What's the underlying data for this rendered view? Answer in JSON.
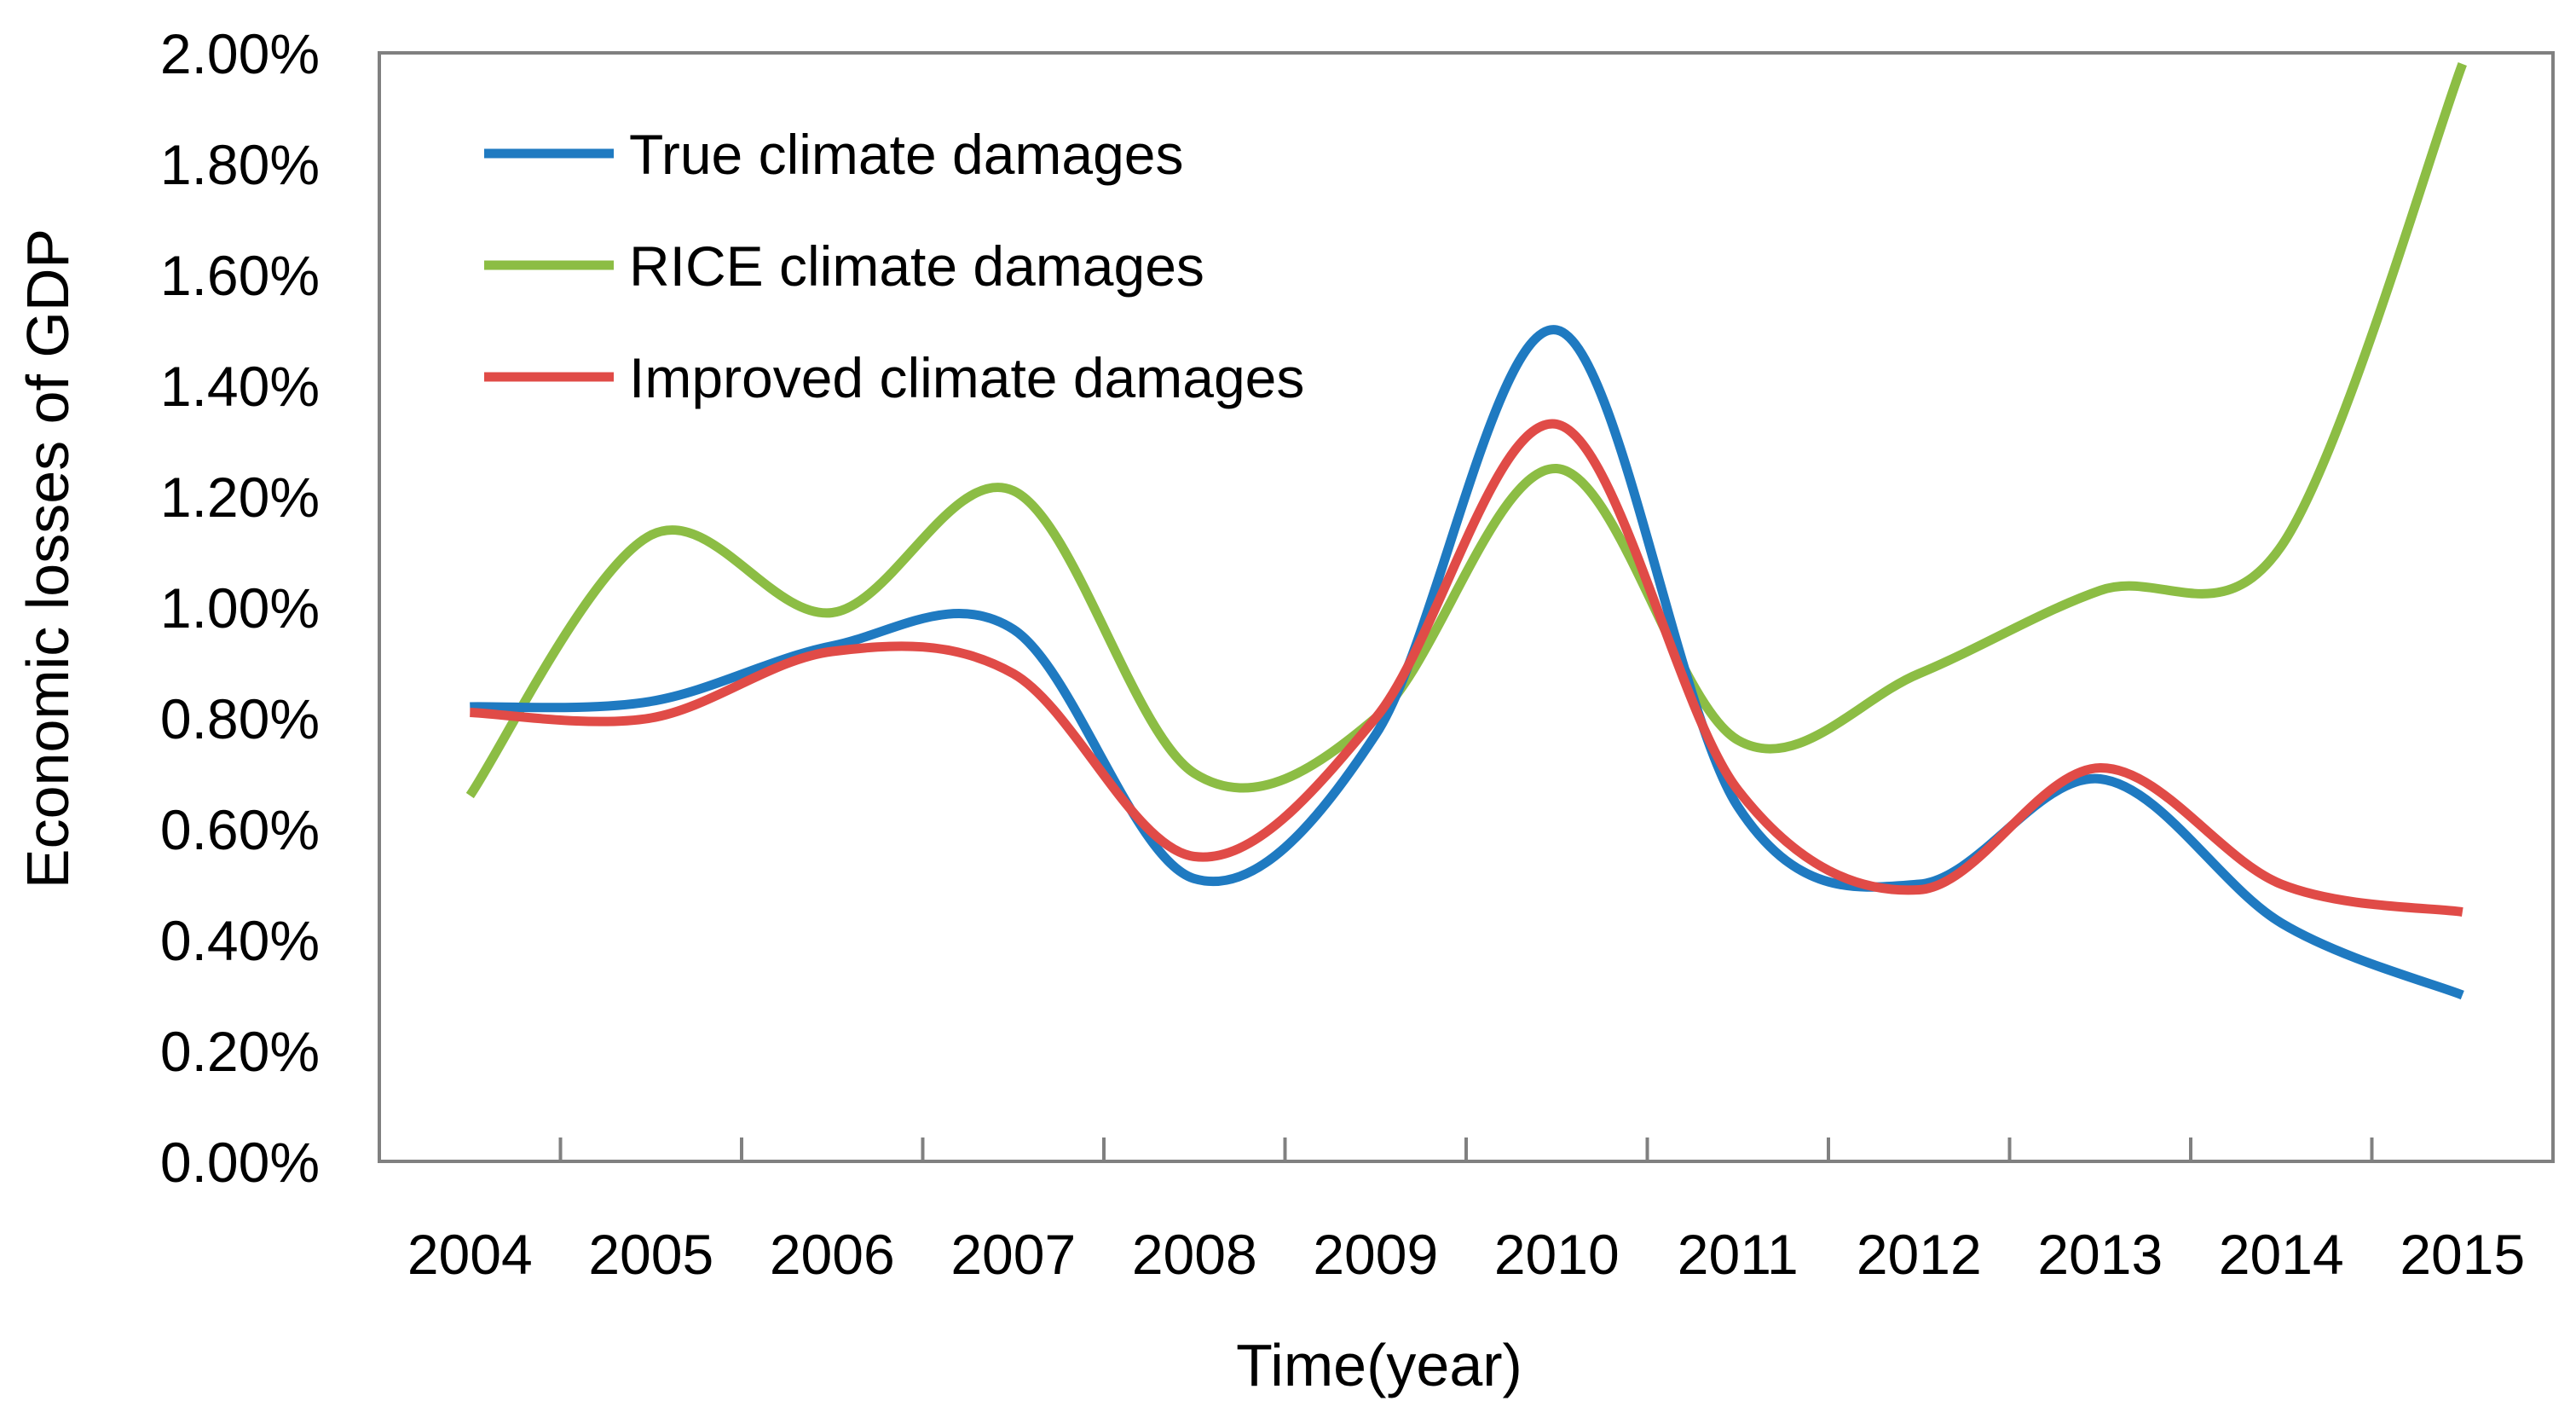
{
  "chart_data": {
    "type": "line",
    "title": "",
    "xlabel": "Time(year)",
    "ylabel": "Economic losses of   GDP",
    "x": [
      "2004",
      "2005",
      "2006",
      "2007",
      "2008",
      "2009",
      "2010",
      "2011",
      "2012",
      "2013",
      "2014",
      "2015"
    ],
    "ylim": [
      0,
      0.02
    ],
    "yticks": [
      "0.00%",
      "0.20%",
      "0.40%",
      "0.60%",
      "0.80%",
      "1.00%",
      "1.20%",
      "1.40%",
      "1.60%",
      "1.80%",
      "2.00%"
    ],
    "grid": false,
    "legend_position": "top-left",
    "series": [
      {
        "name": "True climate damages",
        "color": "#1f7ac1",
        "values": [
          0.0082,
          0.0083,
          0.0093,
          0.0096,
          0.0051,
          0.0077,
          0.015,
          0.0064,
          0.005,
          0.0069,
          0.0043,
          0.003
        ]
      },
      {
        "name": "RICE climate damages",
        "color": "#8cbd44",
        "values": [
          0.0066,
          0.0113,
          0.0099,
          0.0121,
          0.007,
          0.008,
          0.0125,
          0.0076,
          0.0088,
          0.0103,
          0.0111,
          0.0198
        ]
      },
      {
        "name": "Improved climate damages",
        "color": "#e04b47",
        "values": [
          0.0081,
          0.008,
          0.0092,
          0.0088,
          0.0055,
          0.008,
          0.0133,
          0.0067,
          0.0049,
          0.0071,
          0.005,
          0.0045
        ]
      }
    ]
  }
}
